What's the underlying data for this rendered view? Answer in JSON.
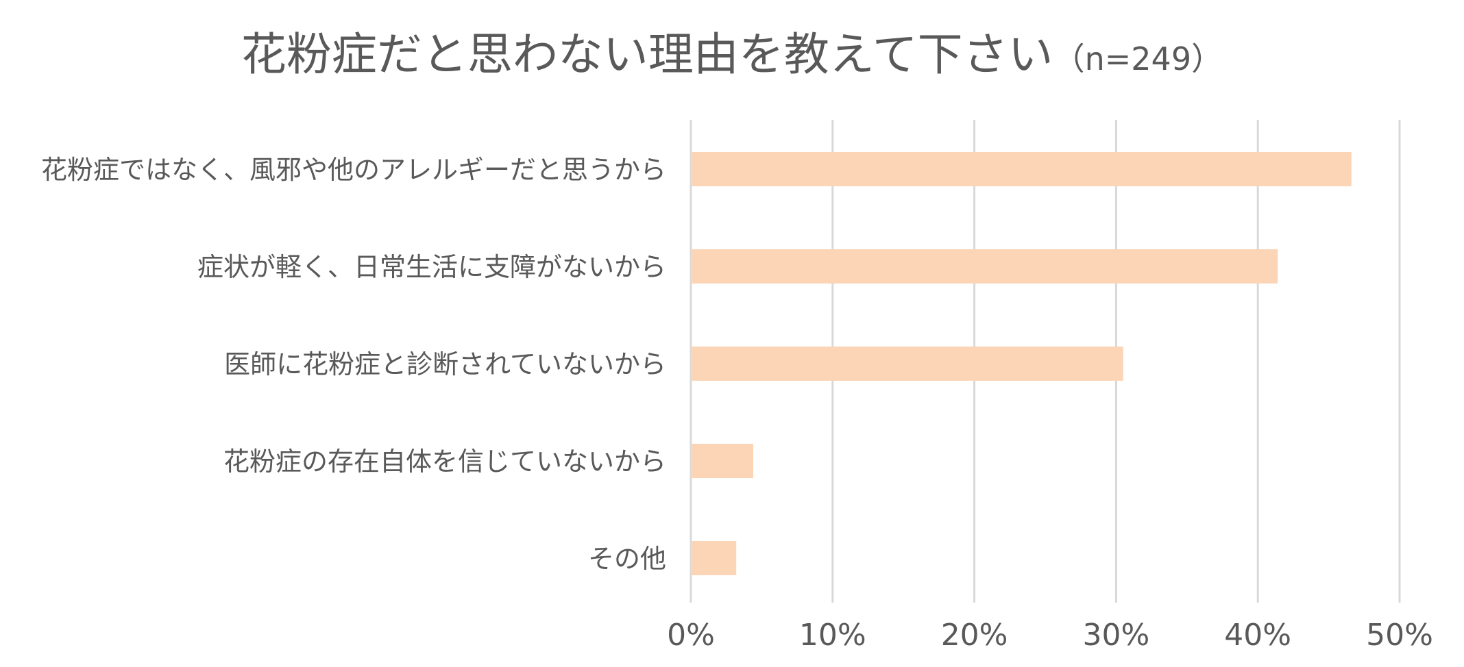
{
  "chart_data": {
    "type": "bar",
    "orientation": "horizontal",
    "title": "花粉症だと思わない理由を教えて下さい",
    "subtitle": "（n=249）",
    "categories": [
      "花粉症ではなく、風邪や他のアレルギーだと思うから",
      "症状が軽く、日常生活に支障がないから",
      "医師に花粉症と診断されていないから",
      "花粉症の存在自体を信じていないから",
      "その他"
    ],
    "values": [
      46.6,
      41.4,
      30.5,
      4.4,
      3.2
    ],
    "unit": "%",
    "xlim": [
      0,
      50
    ],
    "xticks": [
      "0%",
      "10%",
      "20%",
      "30%",
      "40%",
      "50%"
    ],
    "tick_values": [
      0,
      10,
      20,
      30,
      40,
      50
    ],
    "grid": true,
    "legend": "none",
    "bar_color": "#fbd5b5",
    "grid_color": "#d9d9d9",
    "text_color": "#595959"
  }
}
